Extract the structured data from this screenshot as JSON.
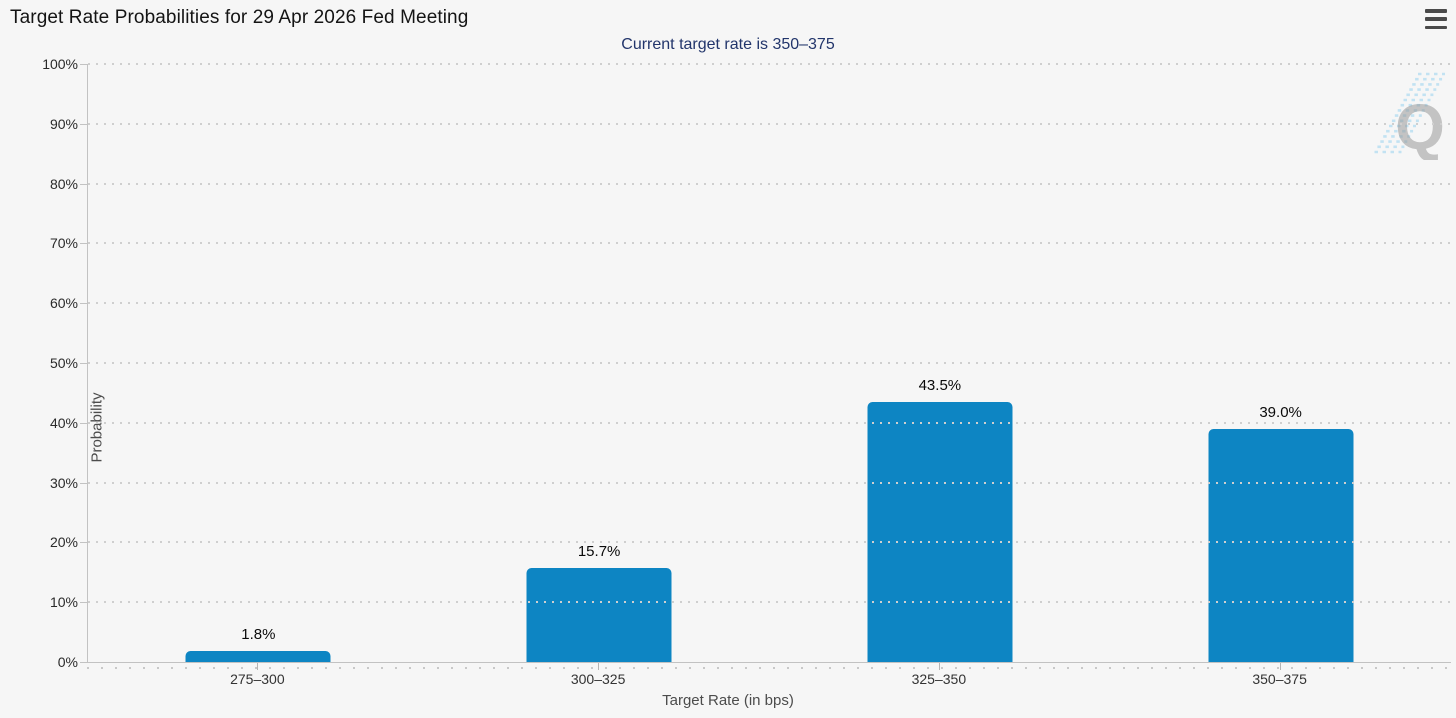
{
  "header": {
    "title": "Target Rate Probabilities for 29 Apr 2026 Fed Meeting",
    "menu_icon": "hamburger-icon"
  },
  "subtitle": "Current target rate is 350–375",
  "chart_data": {
    "type": "bar",
    "title": "Target Rate Probabilities for 29 Apr 2026 Fed Meeting",
    "subtitle": "Current target rate is 350–375",
    "categories": [
      "275–300",
      "300–325",
      "325–350",
      "350–375"
    ],
    "values": [
      1.8,
      15.7,
      43.5,
      39.0
    ],
    "value_labels": [
      "1.8%",
      "15.7%",
      "43.5%",
      "39.0%"
    ],
    "xlabel": "Target Rate (in bps)",
    "ylabel": "Probability",
    "ylim": [
      0,
      100
    ],
    "ytick_step": 10,
    "ytick_labels": [
      "0%",
      "10%",
      "20%",
      "30%",
      "40%",
      "50%",
      "60%",
      "70%",
      "80%",
      "90%",
      "100%"
    ],
    "grid": "dotted-horizontal",
    "legend": "none",
    "bar_color": "#0d85c3"
  },
  "watermark": {
    "letter": "Q",
    "gray": "#9a9a9a",
    "stripe_blue": "#b9dff2"
  },
  "colors": {
    "background": "#f6f6f6",
    "subtitle_text": "#22356b",
    "axis_line": "#c2c2c2",
    "gridline": "#cfcfcf"
  }
}
